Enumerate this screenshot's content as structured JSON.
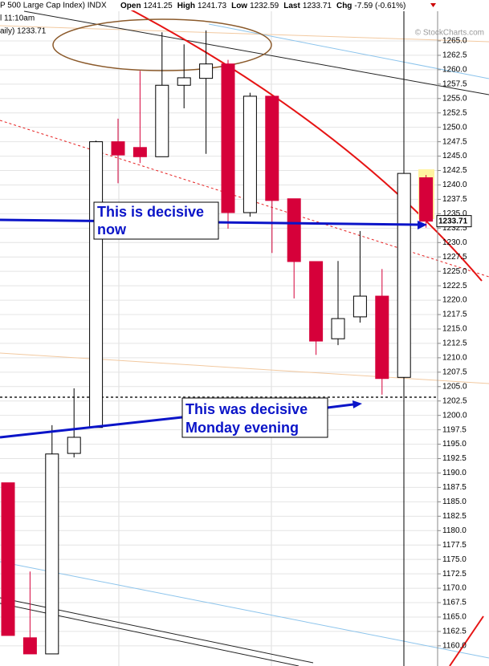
{
  "chart_data": {
    "type": "candlestick",
    "header": {
      "title": "P 500 Large Cap Index) INDX",
      "fields": [
        {
          "label": "Open",
          "value": "1241.25"
        },
        {
          "label": "High",
          "value": "1241.73"
        },
        {
          "label": "Low",
          "value": "1232.59"
        },
        {
          "label": "Last",
          "value": "1233.71"
        },
        {
          "label": "Chg",
          "value": "-7.59 (-0.61%)"
        }
      ],
      "notes": [
        "l 11:10am",
        "aily) 1233.71"
      ],
      "credit": "© StockCharts.com"
    },
    "annotations": [
      {
        "lines": [
          "This is decisive",
          "now"
        ]
      },
      {
        "lines": [
          "This was decisive",
          "Monday evening"
        ]
      }
    ],
    "open": [
      1188.3,
      1161.4,
      1158.6,
      1193.4,
      1197.9,
      1247.5,
      1246.5,
      1244.9,
      1257.3,
      1258.5,
      1261.0,
      1235.2,
      1255.4,
      1237.6,
      1226.7,
      1213.3,
      1217.1,
      1220.7,
      1206.6,
      1241.25
    ],
    "high": [
      1188.3,
      1172.9,
      1198.3,
      1204.7,
      1247.7,
      1251.5,
      1259.8,
      1266.5,
      1264.4,
      1266.8,
      1261.7,
      1256.0,
      1255.4,
      1237.6,
      1226.7,
      1226.8,
      1232.0,
      1225.4,
      1242.0,
      1241.73
    ],
    "low": [
      1161.8,
      1158.6,
      1158.6,
      1192.7,
      1197.9,
      1240.3,
      1243.8,
      1244.9,
      1253.3,
      1245.4,
      1232.4,
      1234.5,
      1228.2,
      1220.3,
      1210.5,
      1212.2,
      1216.1,
      1203.6,
      1206.6,
      1232.59
    ],
    "close": [
      1161.8,
      1158.6,
      1193.3,
      1196.2,
      1247.5,
      1245.2,
      1244.9,
      1257.3,
      1258.6,
      1261.0,
      1235.2,
      1255.4,
      1237.3,
      1226.7,
      1212.9,
      1216.8,
      1220.7,
      1206.4,
      1242.0,
      1233.71
    ],
    "up_color": "#ffffff",
    "down_color": "#d6003a",
    "ylim": [
      1156.5,
      1272.1
    ],
    "yticks": [
      {
        "value": 1160,
        "label": "1160.0"
      },
      1162.5,
      {
        "value": 1165,
        "label": "1165.0"
      },
      1167.5,
      {
        "value": 1170,
        "label": "1170.0"
      },
      1172.5,
      {
        "value": 1175,
        "label": "1175.0"
      },
      1177.5,
      {
        "value": 1180,
        "label": "1180.0"
      },
      1182.5,
      {
        "value": 1185,
        "label": "1185.0"
      },
      1187.5,
      {
        "value": 1190,
        "label": "1190.0"
      },
      1192.5,
      {
        "value": 1195,
        "label": "1195.0"
      },
      1197.5,
      {
        "value": 1200,
        "label": "1200.0"
      },
      1202.5,
      {
        "value": 1205,
        "label": "1205.0"
      },
      1207.5,
      {
        "value": 1210,
        "label": "1210.0"
      },
      1212.5,
      {
        "value": 1215,
        "label": "1215.0"
      },
      1217.5,
      {
        "value": 1220,
        "label": "1220.0"
      },
      1222.5,
      {
        "value": 1225,
        "label": "1225.0"
      },
      1227.5,
      {
        "value": 1230,
        "label": "1230.0"
      },
      1232.5,
      {
        "value": 1235,
        "label": "1235.0"
      },
      1237.5,
      {
        "value": 1240,
        "label": "1240.0"
      },
      1242.5,
      {
        "value": 1245,
        "label": "1245.0"
      },
      1247.5,
      {
        "value": 1250,
        "label": "1250.0"
      },
      1252.5,
      {
        "value": 1255,
        "label": "1255.0"
      },
      1257.5,
      {
        "value": 1260,
        "label": "1260.0"
      },
      1262.5,
      {
        "value": 1265,
        "label": "1265.0"
      }
    ],
    "grid": true
  }
}
